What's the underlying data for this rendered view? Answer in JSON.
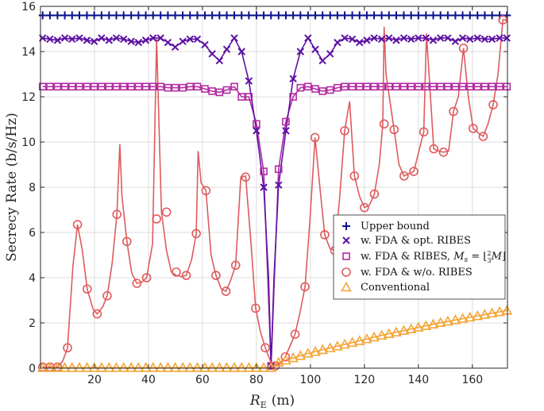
{
  "chart_data": {
    "type": "line",
    "title": "",
    "xlabel_main": "R",
    "xlabel_sub": "E",
    "xlabel_unit": "(m)",
    "ylabel": "Secrecy Rate (b/s/Hz)",
    "xlim": [
      0,
      173
    ],
    "ylim": [
      0,
      16
    ],
    "xticks": [
      20,
      40,
      60,
      80,
      100,
      120,
      140,
      160
    ],
    "yticks": [
      0,
      2,
      4,
      6,
      8,
      10,
      12,
      14,
      16
    ],
    "grid": true,
    "legend_position": "center-right",
    "series": [
      {
        "name": "Upper bound",
        "color": "#0a128c",
        "marker": "plus",
        "x": [
          0.8,
          3.5,
          6.3,
          9.0,
          11.7,
          14.4,
          17.2,
          19.9,
          22.6,
          25.4,
          28.1,
          30.8,
          33.6,
          36.3,
          39.0,
          41.7,
          44.5,
          47.2,
          49.9,
          52.7,
          55.4,
          58.1,
          60.9,
          63.6,
          66.3,
          69.0,
          71.8,
          74.5,
          77.2,
          80.0,
          82.7,
          85.4,
          88.2,
          90.9,
          93.6,
          96.3,
          99.1,
          101.8,
          104.5,
          107.3,
          110.0,
          112.7,
          115.5,
          118.2,
          120.9,
          123.6,
          126.4,
          129.1,
          131.8,
          134.6,
          137.3,
          140.0,
          142.8,
          145.5,
          148.2,
          150.9,
          153.7,
          156.4,
          159.1,
          161.9,
          164.6,
          167.3,
          170.1,
          172.8
        ],
        "values": [
          15.6,
          15.6,
          15.6,
          15.6,
          15.6,
          15.6,
          15.6,
          15.6,
          15.6,
          15.6,
          15.6,
          15.6,
          15.6,
          15.6,
          15.6,
          15.6,
          15.6,
          15.6,
          15.6,
          15.6,
          15.6,
          15.6,
          15.6,
          15.6,
          15.6,
          15.6,
          15.6,
          15.6,
          15.6,
          15.6,
          15.6,
          15.6,
          15.6,
          15.6,
          15.6,
          15.6,
          15.6,
          15.6,
          15.6,
          15.6,
          15.6,
          15.6,
          15.6,
          15.6,
          15.6,
          15.6,
          15.6,
          15.6,
          15.6,
          15.6,
          15.6,
          15.6,
          15.6,
          15.6,
          15.6,
          15.6,
          15.6,
          15.6,
          15.6,
          15.6,
          15.6,
          15.6,
          15.6,
          15.6
        ]
      },
      {
        "name": "w. FDA & opt. RIBES",
        "color": "#5c11a3",
        "marker": "x",
        "x": [
          0.8,
          3.5,
          6.3,
          9.0,
          11.7,
          14.4,
          17.2,
          19.9,
          22.6,
          25.4,
          28.1,
          30.8,
          33.6,
          36.3,
          39.0,
          41.7,
          44.5,
          47.2,
          49.9,
          52.7,
          55.4,
          58.1,
          60.9,
          63.6,
          66.3,
          69.0,
          71.8,
          74.5,
          77.2,
          80.0,
          82.7,
          85.4,
          88.2,
          90.9,
          93.6,
          96.3,
          99.1,
          101.8,
          104.5,
          107.3,
          110.0,
          112.7,
          115.5,
          118.2,
          120.9,
          123.6,
          126.4,
          129.1,
          131.8,
          134.6,
          137.3,
          140.0,
          142.8,
          145.5,
          148.2,
          150.9,
          153.7,
          156.4,
          159.1,
          161.9,
          164.6,
          167.3,
          170.1,
          172.8
        ],
        "values": [
          14.6,
          14.55,
          14.5,
          14.6,
          14.55,
          14.6,
          14.5,
          14.45,
          14.6,
          14.5,
          14.6,
          14.55,
          14.45,
          14.4,
          14.5,
          14.6,
          14.6,
          14.4,
          14.2,
          14.45,
          14.55,
          14.55,
          14.3,
          13.9,
          13.6,
          14.1,
          14.6,
          14.0,
          12.7,
          10.5,
          8.0,
          0.1,
          8.1,
          10.5,
          12.8,
          14.0,
          14.6,
          14.1,
          13.6,
          13.9,
          14.4,
          14.6,
          14.55,
          14.4,
          14.5,
          14.6,
          14.55,
          14.6,
          14.5,
          14.6,
          14.55,
          14.6,
          14.6,
          14.5,
          14.6,
          14.6,
          14.45,
          14.6,
          14.55,
          14.6,
          14.55,
          14.55,
          14.6,
          14.6
        ]
      },
      {
        "name": "w. FDA & RIBES, M_s = ⌊(2/3)M⌋",
        "label_prefix": "w. FDA & RIBES, ",
        "label_math": "M",
        "label_sub": "s",
        "label_eq": " = ",
        "label_frac_num": "2",
        "label_frac_den": "3",
        "label_tail": "M",
        "color": "#b32ca3",
        "marker": "square",
        "x": [
          0.8,
          3.5,
          6.3,
          9.0,
          11.7,
          14.4,
          17.2,
          19.9,
          22.6,
          25.4,
          28.1,
          30.8,
          33.6,
          36.3,
          39.0,
          41.7,
          44.5,
          47.2,
          49.9,
          52.7,
          55.4,
          58.1,
          60.9,
          63.6,
          66.3,
          69.0,
          71.8,
          74.5,
          77.2,
          80.0,
          82.7,
          85.4,
          88.2,
          90.9,
          93.6,
          96.3,
          99.1,
          101.8,
          104.5,
          107.3,
          110.0,
          112.7,
          115.5,
          118.2,
          120.9,
          123.6,
          126.4,
          129.1,
          131.8,
          134.6,
          137.3,
          140.0,
          142.8,
          145.5,
          148.2,
          150.9,
          153.7,
          156.4,
          159.1,
          161.9,
          164.6,
          167.3,
          170.1,
          172.8
        ],
        "values": [
          12.45,
          12.45,
          12.45,
          12.45,
          12.45,
          12.45,
          12.45,
          12.45,
          12.45,
          12.45,
          12.45,
          12.45,
          12.45,
          12.45,
          12.45,
          12.45,
          12.45,
          12.4,
          12.4,
          12.4,
          12.45,
          12.45,
          12.35,
          12.25,
          12.2,
          12.3,
          12.45,
          12.0,
          12.0,
          10.8,
          8.7,
          0.1,
          8.8,
          10.9,
          12.0,
          12.4,
          12.45,
          12.35,
          12.25,
          12.3,
          12.4,
          12.45,
          12.45,
          12.45,
          12.45,
          12.45,
          12.45,
          12.45,
          12.45,
          12.45,
          12.45,
          12.45,
          12.45,
          12.45,
          12.45,
          12.45,
          12.45,
          12.45,
          12.45,
          12.45,
          12.45,
          12.45,
          12.45,
          12.45
        ]
      },
      {
        "name": "w. FDA & w/o. RIBES",
        "color": "#de5b5d",
        "marker": "circle",
        "x": [
          0.8,
          3.5,
          6.3,
          10.0,
          13.7,
          17.3,
          21.0,
          24.7,
          28.3,
          32.0,
          35.7,
          39.3,
          43.0,
          46.7,
          50.3,
          54.0,
          57.7,
          61.3,
          65.0,
          68.7,
          72.3,
          76.0,
          79.7,
          83.3,
          87.0,
          90.7,
          94.3,
          98.0,
          101.7,
          105.3,
          109.0,
          112.7,
          116.3,
          120.0,
          123.7,
          127.3,
          131.0,
          134.7,
          138.3,
          142.0,
          145.7,
          149.3,
          153.0,
          156.7,
          160.3,
          164.0,
          167.7,
          171.3
        ],
        "values": [
          0.05,
          0.05,
          0.05,
          0.9,
          6.35,
          3.5,
          2.4,
          3.2,
          6.8,
          5.6,
          3.75,
          4.0,
          6.6,
          6.9,
          4.25,
          4.1,
          5.95,
          7.85,
          4.1,
          3.4,
          4.55,
          8.45,
          2.65,
          0.9,
          0.1,
          0.5,
          1.5,
          3.6,
          10.2,
          5.9,
          5.2,
          10.5,
          8.5,
          7.1,
          7.7,
          10.8,
          10.55,
          8.5,
          8.7,
          10.45,
          9.7,
          9.55,
          11.35,
          14.15,
          10.6,
          10.25,
          11.65,
          15.4
        ]
      },
      {
        "name": "Conventional",
        "color": "#f3a638",
        "marker": "triangle",
        "x": [
          0.8,
          3.5,
          6.3,
          9.0,
          11.7,
          14.4,
          17.2,
          19.9,
          22.6,
          25.4,
          28.1,
          30.8,
          33.6,
          36.3,
          39.0,
          41.7,
          44.5,
          47.2,
          49.9,
          52.7,
          55.4,
          58.1,
          60.9,
          63.6,
          66.3,
          69.0,
          71.8,
          74.5,
          77.2,
          80.0,
          82.7,
          85.4,
          88.2,
          90.9,
          93.6,
          96.3,
          99.1,
          101.8,
          104.5,
          107.3,
          110.0,
          112.7,
          115.5,
          118.2,
          120.9,
          123.6,
          126.4,
          129.1,
          131.8,
          134.6,
          137.3,
          140.0,
          142.8,
          145.5,
          148.2,
          150.9,
          153.7,
          156.4,
          159.1,
          161.9,
          164.6,
          167.3,
          170.1,
          172.8
        ],
        "values": [
          0.02,
          0.02,
          0.02,
          0.02,
          0.02,
          0.02,
          0.02,
          0.02,
          0.02,
          0.02,
          0.02,
          0.02,
          0.02,
          0.02,
          0.02,
          0.02,
          0.02,
          0.02,
          0.02,
          0.02,
          0.02,
          0.02,
          0.02,
          0.02,
          0.02,
          0.02,
          0.02,
          0.02,
          0.02,
          0.02,
          0.02,
          0.02,
          0.25,
          0.35,
          0.45,
          0.55,
          0.65,
          0.73,
          0.81,
          0.89,
          0.97,
          1.05,
          1.13,
          1.21,
          1.29,
          1.37,
          1.45,
          1.52,
          1.59,
          1.66,
          1.73,
          1.8,
          1.87,
          1.94,
          2.01,
          2.07,
          2.13,
          2.19,
          2.25,
          2.31,
          2.37,
          2.43,
          2.49,
          2.55
        ]
      }
    ],
    "highlight_curves": [
      {
        "name": "w. FDA & opt. RIBES (smooth)",
        "color": "#5c11a3",
        "x": [
          0.8,
          3.5,
          6.3,
          9.0,
          11.7,
          14.4,
          17.2,
          19.9,
          22.6,
          25.4,
          28.1,
          30.8,
          33.6,
          36.3,
          39.0,
          41.7,
          44.5,
          47.2,
          49.9,
          52.7,
          55.4,
          58.1,
          60.9,
          63.6,
          66.3,
          69.0,
          71.8,
          74.5,
          77.2,
          80.0,
          82.7,
          84.5,
          85.4,
          86.5,
          88.2,
          90.9,
          93.6,
          96.3,
          99.1,
          101.8,
          104.5,
          107.3,
          110.0,
          112.7,
          115.5,
          118.2,
          120.9,
          123.6,
          126.4,
          129.1,
          131.8,
          134.6,
          137.3,
          140.0,
          142.8,
          145.5,
          148.2,
          150.9,
          153.7,
          156.4,
          159.1,
          161.9,
          164.6,
          167.3,
          170.1,
          172.8
        ],
        "values": [
          14.6,
          14.55,
          14.5,
          14.6,
          14.55,
          14.6,
          14.5,
          14.45,
          14.6,
          14.5,
          14.6,
          14.55,
          14.45,
          14.4,
          14.5,
          14.6,
          14.6,
          14.4,
          14.2,
          14.45,
          14.55,
          14.55,
          14.3,
          13.9,
          13.6,
          14.1,
          14.6,
          14.0,
          12.7,
          10.5,
          8.0,
          4.0,
          0.1,
          4.0,
          8.1,
          10.5,
          12.8,
          14.0,
          14.6,
          14.1,
          13.6,
          13.9,
          14.4,
          14.6,
          14.55,
          14.4,
          14.5,
          14.6,
          14.55,
          14.6,
          14.5,
          14.6,
          14.55,
          14.6,
          14.6,
          14.5,
          14.6,
          14.6,
          14.45,
          14.6,
          14.55,
          14.6,
          14.55,
          14.55,
          14.6,
          14.6
        ]
      },
      {
        "name": "w. FDA & w/o. RIBES (smooth)",
        "color": "#de5b5d",
        "x": [
          0.8,
          3.5,
          6.3,
          8.2,
          10.0,
          12.0,
          13.7,
          15.5,
          17.3,
          19.5,
          21.0,
          23.0,
          24.7,
          26.5,
          28.3,
          29.4,
          30.2,
          32.0,
          33.8,
          35.7,
          37.5,
          39.3,
          41.5,
          43.0,
          44.8,
          46.7,
          48.5,
          50.3,
          52.2,
          54.0,
          56.0,
          57.7,
          58.4,
          59.5,
          61.3,
          63.2,
          65.0,
          67.0,
          68.7,
          70.5,
          72.3,
          74.2,
          76.0,
          78.0,
          79.7,
          81.5,
          83.3,
          85.2,
          86.3,
          87.0,
          88.8,
          90.7,
          92.5,
          94.3,
          96.2,
          98.0,
          99.8,
          101.7,
          103.5,
          105.3,
          107.2,
          109.0,
          110.8,
          112.7,
          114.5,
          116.3,
          118.2,
          120.0,
          121.8,
          123.7,
          125.5,
          126.8,
          127.3,
          128.0,
          131.0,
          132.8,
          134.7,
          136.5,
          138.3,
          140.2,
          142.0,
          143.0,
          145.7,
          147.5,
          149.3,
          151.2,
          153.0,
          154.8,
          156.7,
          158.5,
          160.3,
          162.2,
          164.0,
          165.8,
          167.7,
          169.5,
          171.3,
          172.8
        ],
        "values": [
          0.05,
          0.05,
          0.05,
          0.3,
          0.9,
          4.5,
          6.35,
          5.2,
          3.5,
          2.6,
          2.4,
          2.7,
          3.2,
          4.6,
          6.8,
          9.9,
          7.6,
          5.6,
          4.2,
          3.75,
          3.8,
          4.0,
          5.5,
          14.55,
          6.9,
          5.2,
          4.25,
          4.1,
          4.05,
          4.1,
          4.8,
          5.95,
          9.6,
          8.2,
          7.85,
          5.0,
          4.1,
          3.5,
          3.4,
          3.9,
          4.55,
          8.45,
          8.5,
          5.5,
          2.65,
          1.6,
          0.9,
          0.3,
          0.1,
          0.1,
          0.2,
          0.5,
          1.0,
          1.5,
          2.5,
          3.6,
          6.5,
          10.2,
          8.0,
          5.9,
          5.3,
          5.2,
          7.5,
          10.5,
          11.8,
          8.5,
          7.6,
          7.1,
          7.2,
          7.7,
          9.0,
          10.8,
          15.1,
          13.0,
          10.55,
          9.0,
          8.5,
          8.6,
          8.7,
          9.6,
          10.45,
          14.8,
          9.7,
          9.6,
          9.55,
          9.6,
          11.35,
          12.0,
          14.15,
          12.0,
          10.6,
          10.4,
          10.25,
          10.8,
          11.65,
          13.0,
          15.4,
          15.4
        ]
      }
    ]
  }
}
